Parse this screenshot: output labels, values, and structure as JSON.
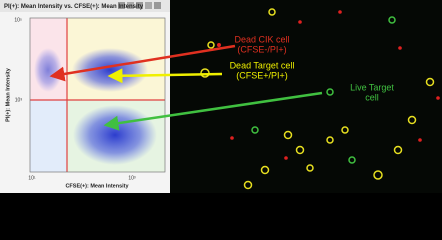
{
  "window": {
    "title": "PI(+): Mean Intensity vs. CFSE(+): Mean Intensity"
  },
  "plot": {
    "y_axis_label": "PI(+): Mean Intensity",
    "x_axis_label": "CFSE(+): Mean Intensity",
    "y_tick_labels": [
      "10⁵",
      "10³"
    ],
    "x_tick_labels": [
      "10¹",
      "10³"
    ]
  },
  "annotations": [
    {
      "label": "Dead CIK cell",
      "sublabel": "(CFSE-/PI+)"
    },
    {
      "label": "Dead Target cell",
      "sublabel": "(CFSE+/PI+)"
    },
    {
      "label": "Live Target",
      "sublabel": "cell"
    }
  ]
}
